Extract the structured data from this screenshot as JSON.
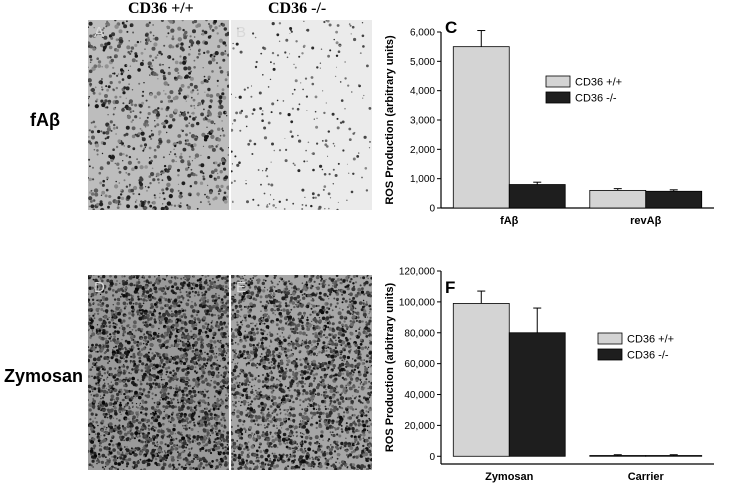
{
  "header": {
    "col_left": "CD36 +/+",
    "col_right": "CD36 -/-"
  },
  "rows": {
    "top_label": "fAβ",
    "bottom_label": "Zymosan"
  },
  "panels": {
    "A": "A",
    "B": "B",
    "C": "C",
    "D": "D",
    "E": "E",
    "F": "F"
  },
  "colors": {
    "wt": "#d4d4d4",
    "ko": "#1e1e1e"
  },
  "chart_data": [
    {
      "type": "bar",
      "panel": "C",
      "ylabel": "ROS Production (arbitrary units)",
      "categories": [
        "fAβ",
        "revAβ"
      ],
      "series": [
        {
          "name": "CD36 +/+",
          "values": [
            5500,
            600
          ],
          "errors": [
            550,
            60
          ]
        },
        {
          "name": "CD36 -/-",
          "values": [
            800,
            570
          ],
          "errors": [
            80,
            50
          ]
        }
      ],
      "ylim": [
        0,
        6000
      ],
      "yticks": [
        0,
        1000,
        2000,
        3000,
        4000,
        5000,
        6000
      ],
      "yticklabels": [
        "0",
        "1,000",
        "2,000",
        "3,000",
        "4,000",
        "5,000",
        "6,000"
      ],
      "legend": "top-right"
    },
    {
      "type": "bar",
      "panel": "F",
      "ylabel": "ROS Production (arbitrary units)",
      "categories": [
        "Zymosan",
        "Carrier"
      ],
      "series": [
        {
          "name": "CD36 +/+",
          "values": [
            99000,
            500
          ],
          "errors": [
            8000,
            500
          ]
        },
        {
          "name": "CD36 -/-",
          "values": [
            80000,
            500
          ],
          "errors": [
            16000,
            500
          ]
        }
      ],
      "ylim": [
        -5000,
        120000
      ],
      "yticks": [
        0,
        20000,
        40000,
        60000,
        80000,
        100000,
        120000
      ],
      "yticklabels": [
        "0",
        "20,000",
        "40,000",
        "60,000",
        "80,000",
        "100,000",
        "120,000"
      ],
      "legend": "right"
    }
  ]
}
